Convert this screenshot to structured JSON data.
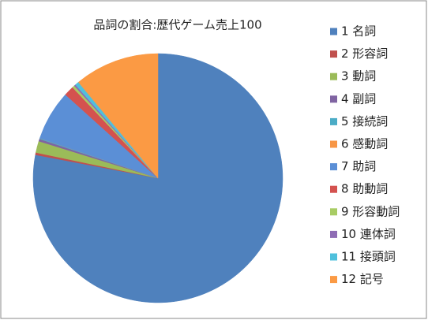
{
  "chart_data": {
    "type": "pie",
    "title": "品詞の割合:歴代ゲーム売上100",
    "categories": [
      "1 名詞",
      "2 形容詞",
      "3 動詞",
      "4 副詞",
      "5 接続詞",
      "6 感動詞",
      "7 助詞",
      "8 助動詞",
      "9 形容動詞",
      "10 連体詞",
      "11 接頭詞",
      "12 記号"
    ],
    "values": [
      78,
      0.3,
      1.5,
      0.3,
      0.1,
      0,
      6.5,
      1.3,
      0.3,
      0.2,
      0.5,
      11
    ],
    "colors": [
      "#4f81bd",
      "#c0504d",
      "#9bbb59",
      "#8064a2",
      "#4bacc6",
      "#f79646",
      "#5b8fd6",
      "#d4524f",
      "#a8cc64",
      "#8e6cb4",
      "#4fc0dc",
      "#fb9a44"
    ],
    "legend": "right"
  }
}
